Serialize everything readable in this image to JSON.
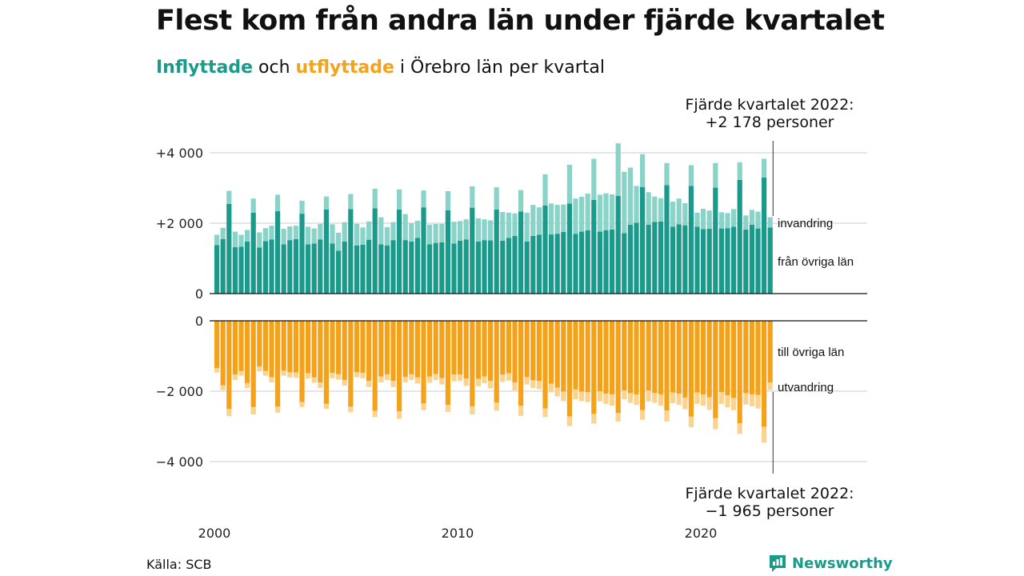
{
  "header": {
    "title": "Flest kom från andra län under fjärde kvartalet",
    "subtitle_part1": "Inflyttade",
    "subtitle_part2": " och ",
    "subtitle_part3": "utflyttade",
    "subtitle_part4": " i Örebro län per kvartal"
  },
  "annotations": {
    "top_line1": "Fjärde kvartalet 2022:",
    "top_line2": "+2 178 personer",
    "bottom_line1": "Fjärde kvartalet 2022:",
    "bottom_line2": "−1 965 personer"
  },
  "footer": {
    "source": "Källa: SCB",
    "brand": "Newsworthy"
  },
  "colors": {
    "in_domestic": "#1a9a8a",
    "in_immigration": "#8ad3c9",
    "out_domestic": "#f5a21b",
    "out_emigration": "#f9d38f"
  },
  "chart_data": [
    {
      "type": "bar",
      "stacked": true,
      "title": "",
      "xlabel": "",
      "ylabel": "",
      "ylim": [
        0,
        4300
      ],
      "yticks": [
        0,
        2000,
        4000
      ],
      "ytick_labels": [
        "0",
        "+2 000",
        "+4 000"
      ],
      "xticks": [
        2000,
        2010,
        2020
      ],
      "xtick_labels": [
        "2000",
        "2010",
        "2020"
      ],
      "x": [
        "2000 K1",
        "2000 K2",
        "2000 K3",
        "2000 K4",
        "2001 K1",
        "2001 K2",
        "2001 K3",
        "2001 K4",
        "2002 K1",
        "2002 K2",
        "2002 K3",
        "2002 K4",
        "2003 K1",
        "2003 K2",
        "2003 K3",
        "2003 K4",
        "2004 K1",
        "2004 K2",
        "2004 K3",
        "2004 K4",
        "2005 K1",
        "2005 K2",
        "2005 K3",
        "2005 K4",
        "2006 K1",
        "2006 K2",
        "2006 K3",
        "2006 K4",
        "2007 K1",
        "2007 K2",
        "2007 K3",
        "2007 K4",
        "2008 K1",
        "2008 K2",
        "2008 K3",
        "2008 K4",
        "2009 K1",
        "2009 K2",
        "2009 K3",
        "2009 K4",
        "2010 K1",
        "2010 K2",
        "2010 K3",
        "2010 K4",
        "2011 K1",
        "2011 K2",
        "2011 K3",
        "2011 K4",
        "2012 K1",
        "2012 K2",
        "2012 K3",
        "2012 K4",
        "2013 K1",
        "2013 K2",
        "2013 K3",
        "2013 K4",
        "2014 K1",
        "2014 K2",
        "2014 K3",
        "2014 K4",
        "2015 K1",
        "2015 K2",
        "2015 K3",
        "2015 K4",
        "2016 K1",
        "2016 K2",
        "2016 K3",
        "2016 K4",
        "2017 K1",
        "2017 K2",
        "2017 K3",
        "2017 K4",
        "2018 K1",
        "2018 K2",
        "2018 K3",
        "2018 K4",
        "2019 K1",
        "2019 K2",
        "2019 K3",
        "2019 K4",
        "2020 K1",
        "2020 K2",
        "2020 K3",
        "2020 K4",
        "2021 K1",
        "2021 K2",
        "2021 K3",
        "2021 K4",
        "2022 K1",
        "2022 K2",
        "2022 K3",
        "2022 K4"
      ],
      "series": [
        {
          "name": "från övriga län",
          "values": [
            1380,
            1550,
            2550,
            1320,
            1330,
            1480,
            2300,
            1310,
            1490,
            1540,
            2340,
            1400,
            1520,
            1550,
            2270,
            1400,
            1420,
            1540,
            2390,
            1420,
            1220,
            1480,
            2400,
            1370,
            1390,
            1530,
            2420,
            1400,
            1370,
            1520,
            2390,
            1520,
            1480,
            1580,
            2450,
            1400,
            1440,
            1460,
            2370,
            1420,
            1500,
            1540,
            2440,
            1480,
            1520,
            1510,
            2390,
            1500,
            1580,
            1640,
            2330,
            1480,
            1640,
            1670,
            2500,
            1680,
            1700,
            1750,
            2560,
            1700,
            1760,
            1800,
            2660,
            1760,
            1800,
            1820,
            2780,
            1720,
            1960,
            2010,
            3030,
            1960,
            2040,
            2050,
            3080,
            1900,
            1970,
            1940,
            3060,
            1900,
            1830,
            1840,
            3010,
            1850,
            1860,
            1900,
            3230,
            1820,
            1960,
            1850,
            3300,
            1880
          ]
        },
        {
          "name": "invandring",
          "values": [
            290,
            320,
            370,
            440,
            340,
            330,
            400,
            430,
            370,
            390,
            470,
            440,
            390,
            380,
            370,
            500,
            430,
            440,
            370,
            550,
            510,
            550,
            430,
            610,
            490,
            520,
            560,
            770,
            520,
            510,
            570,
            740,
            520,
            490,
            480,
            560,
            540,
            520,
            540,
            620,
            560,
            570,
            610,
            660,
            590,
            570,
            630,
            820,
            720,
            640,
            610,
            820,
            880,
            780,
            890,
            880,
            820,
            780,
            1100,
            1000,
            990,
            1040,
            1170,
            1050,
            1050,
            1000,
            1490,
            1740,
            1620,
            1050,
            930,
            920,
            720,
            660,
            630,
            710,
            730,
            630,
            590,
            400,
            580,
            520,
            700,
            460,
            430,
            500,
            500,
            400,
            420,
            480,
            530,
            290
          ]
        }
      ]
    },
    {
      "type": "bar",
      "stacked": true,
      "title": "",
      "xlabel": "",
      "ylabel": "",
      "ylim": [
        -4300,
        0
      ],
      "yticks": [
        0,
        -2000,
        -4000
      ],
      "ytick_labels": [
        "0",
        "−2 000",
        "−4 000"
      ],
      "xticks": [
        2000,
        2010,
        2020
      ],
      "xtick_labels": [
        "2000",
        "2010",
        "2020"
      ],
      "x": [
        "2000 K1",
        "2000 K2",
        "2000 K3",
        "2000 K4",
        "2001 K1",
        "2001 K2",
        "2001 K3",
        "2001 K4",
        "2002 K1",
        "2002 K2",
        "2002 K3",
        "2002 K4",
        "2003 K1",
        "2003 K2",
        "2003 K3",
        "2003 K4",
        "2004 K1",
        "2004 K2",
        "2004 K3",
        "2004 K4",
        "2005 K1",
        "2005 K2",
        "2005 K3",
        "2005 K4",
        "2006 K1",
        "2006 K2",
        "2006 K3",
        "2006 K4",
        "2007 K1",
        "2007 K2",
        "2007 K3",
        "2007 K4",
        "2008 K1",
        "2008 K2",
        "2008 K3",
        "2008 K4",
        "2009 K1",
        "2009 K2",
        "2009 K3",
        "2009 K4",
        "2010 K1",
        "2010 K2",
        "2010 K3",
        "2010 K4",
        "2011 K1",
        "2011 K2",
        "2011 K3",
        "2011 K4",
        "2012 K1",
        "2012 K2",
        "2012 K3",
        "2012 K4",
        "2013 K1",
        "2013 K2",
        "2013 K3",
        "2013 K4",
        "2014 K1",
        "2014 K2",
        "2014 K3",
        "2014 K4",
        "2015 K1",
        "2015 K2",
        "2015 K3",
        "2015 K4",
        "2016 K1",
        "2016 K2",
        "2016 K3",
        "2016 K4",
        "2017 K1",
        "2017 K2",
        "2017 K3",
        "2017 K4",
        "2018 K1",
        "2018 K2",
        "2018 K3",
        "2018 K4",
        "2019 K1",
        "2019 K2",
        "2019 K3",
        "2019 K4",
        "2020 K1",
        "2020 K2",
        "2020 K3",
        "2020 K4",
        "2021 K1",
        "2021 K2",
        "2021 K3",
        "2021 K4",
        "2022 K1",
        "2022 K2",
        "2022 K3",
        "2022 K4"
      ],
      "series": [
        {
          "name": "till övriga län",
          "values": [
            -1340,
            -1830,
            -2500,
            -1530,
            -1430,
            -1770,
            -2450,
            -1300,
            -1420,
            -1600,
            -2440,
            -1420,
            -1460,
            -1470,
            -2310,
            -1490,
            -1610,
            -1750,
            -2360,
            -1480,
            -1520,
            -1680,
            -2440,
            -1460,
            -1480,
            -1710,
            -2560,
            -1580,
            -1520,
            -1710,
            -2570,
            -1590,
            -1520,
            -1610,
            -2350,
            -1580,
            -1510,
            -1630,
            -2390,
            -1530,
            -1530,
            -1640,
            -2430,
            -1650,
            -1580,
            -1710,
            -2320,
            -1530,
            -1490,
            -1750,
            -2410,
            -1600,
            -1690,
            -1710,
            -2490,
            -1790,
            -1900,
            -2010,
            -2720,
            -1950,
            -2010,
            -2030,
            -2650,
            -2000,
            -2070,
            -2090,
            -2620,
            -1980,
            -2060,
            -2090,
            -2540,
            -1980,
            -2050,
            -2090,
            -2550,
            -2040,
            -2070,
            -2180,
            -2720,
            -2040,
            -2090,
            -2170,
            -2770,
            -2030,
            -2120,
            -2190,
            -2910,
            -2060,
            -2090,
            -2110,
            -3010,
            -1750
          ]
        },
        {
          "name": "utvandring",
          "values": [
            -130,
            -140,
            -210,
            -150,
            -130,
            -140,
            -210,
            -140,
            -140,
            -150,
            -170,
            -140,
            -150,
            -150,
            -140,
            -150,
            -150,
            -160,
            -140,
            -150,
            -150,
            -160,
            -160,
            -140,
            -150,
            -170,
            -170,
            -170,
            -160,
            -170,
            -210,
            -160,
            -160,
            -170,
            -190,
            -180,
            -170,
            -180,
            -200,
            -190,
            -180,
            -210,
            -230,
            -210,
            -190,
            -210,
            -230,
            -200,
            -210,
            -230,
            -290,
            -210,
            -220,
            -230,
            -240,
            -240,
            -250,
            -270,
            -270,
            -280,
            -270,
            -280,
            -270,
            -290,
            -290,
            -320,
            -240,
            -250,
            -270,
            -300,
            -270,
            -310,
            -280,
            -320,
            -310,
            -300,
            -320,
            -330,
            -300,
            -320,
            -320,
            -360,
            -310,
            -330,
            -340,
            -350,
            -300,
            -320,
            -340,
            -380,
            -450,
            -215
          ]
        }
      ]
    }
  ],
  "series_labels": {
    "in_immigration": "invandring",
    "in_domestic": "från övriga län",
    "out_domestic": "till övriga län",
    "out_emigration": "utvandring"
  }
}
